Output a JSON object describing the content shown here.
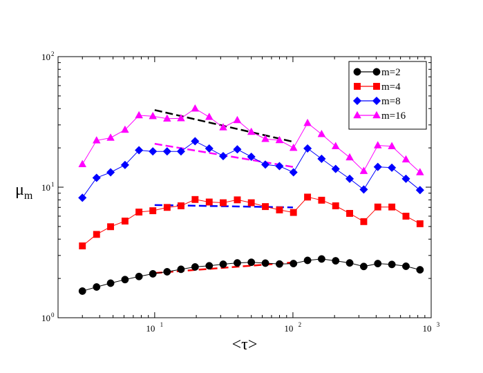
{
  "chart_data": {
    "type": "line",
    "xscale": "log",
    "yscale": "log",
    "xlim": [
      2,
      1000
    ],
    "ylim": [
      1,
      100
    ],
    "ylabel_base": "μ",
    "ylabel_sub": "m",
    "xlabel": "<τ>",
    "x_ticks": [
      {
        "value": 10,
        "base": "10",
        "exp": "1"
      },
      {
        "value": 100,
        "base": "10",
        "exp": "2"
      },
      {
        "value": 1000,
        "base": "10",
        "exp": "3"
      }
    ],
    "y_ticks": [
      {
        "value": 1,
        "base": "10",
        "exp": "0"
      },
      {
        "value": 10,
        "base": "10",
        "exp": "1"
      },
      {
        "value": 100,
        "base": "10",
        "exp": "2"
      }
    ],
    "legend_position": "top-right",
    "series": [
      {
        "name": "m=2",
        "color": "#000000",
        "marker": "circle",
        "x": [
          3.0,
          3.8,
          4.8,
          6.1,
          7.7,
          9.7,
          12.3,
          15.5,
          19.6,
          24.8,
          31.3,
          39.6,
          50.0,
          63.2,
          79.9,
          100.9,
          127.6,
          161.2,
          203.7,
          257.3,
          325.3,
          411.1,
          519.6,
          656.9,
          830.2
        ],
        "y": [
          1.6,
          1.72,
          1.84,
          1.96,
          2.07,
          2.17,
          2.25,
          2.35,
          2.45,
          2.5,
          2.57,
          2.63,
          2.66,
          2.62,
          2.58,
          2.6,
          2.75,
          2.82,
          2.73,
          2.63,
          2.47,
          2.6,
          2.56,
          2.48,
          2.33
        ]
      },
      {
        "name": "m=4",
        "color": "#ff0000",
        "marker": "square",
        "x": [
          3.0,
          3.8,
          4.8,
          6.1,
          7.7,
          9.7,
          12.3,
          15.5,
          19.6,
          24.8,
          31.3,
          39.6,
          50.0,
          63.2,
          79.9,
          100.9,
          127.6,
          161.2,
          203.7,
          257.3,
          325.3,
          411.1,
          519.6,
          656.9,
          830.2
        ],
        "y": [
          3.55,
          4.35,
          4.98,
          5.5,
          6.45,
          6.6,
          7.0,
          7.2,
          8.05,
          7.7,
          7.6,
          8.0,
          7.6,
          7.1,
          6.7,
          6.4,
          8.4,
          7.95,
          7.2,
          6.3,
          5.45,
          7.05,
          7.05,
          6.0,
          5.25
        ]
      },
      {
        "name": "m=8",
        "color": "#0000ff",
        "marker": "diamond",
        "x": [
          3.0,
          3.8,
          4.8,
          6.1,
          7.7,
          9.7,
          12.3,
          15.5,
          19.6,
          24.8,
          31.3,
          39.6,
          50.0,
          63.2,
          79.9,
          100.9,
          127.6,
          161.2,
          203.7,
          257.3,
          325.3,
          411.1,
          519.6,
          656.9,
          830.2
        ],
        "y": [
          8.3,
          11.8,
          13.0,
          14.8,
          19.2,
          18.8,
          18.8,
          18.8,
          22.5,
          19.8,
          17.3,
          19.5,
          17.1,
          14.9,
          14.5,
          13.0,
          19.8,
          16.5,
          13.8,
          11.6,
          9.6,
          14.3,
          14.1,
          11.6,
          9.5
        ]
      },
      {
        "name": "m=16",
        "color": "#ff00ff",
        "marker": "triangle",
        "x": [
          3.0,
          3.8,
          4.8,
          6.1,
          7.7,
          9.7,
          12.3,
          15.5,
          19.6,
          24.8,
          31.3,
          39.6,
          50.0,
          63.2,
          79.9,
          100.9,
          127.6,
          161.2,
          203.7,
          257.3,
          325.3,
          411.1,
          519.6,
          656.9,
          830.2
        ],
        "y": [
          15.0,
          22.8,
          23.9,
          27.5,
          35.5,
          35.0,
          33.5,
          33.7,
          40.0,
          34.5,
          28.7,
          32.6,
          26.5,
          23.4,
          22.9,
          20.0,
          31.0,
          25.5,
          20.6,
          16.9,
          13.3,
          20.9,
          20.6,
          16.3,
          13.0
        ]
      }
    ],
    "fit_lines": [
      {
        "name": "fit m=2",
        "color": "#ff0000",
        "x": [
          10,
          100
        ],
        "y": [
          2.2,
          2.65
        ]
      },
      {
        "name": "fit m=4",
        "color": "#0000ff",
        "x": [
          10,
          100
        ],
        "y": [
          7.3,
          7.0
        ]
      },
      {
        "name": "fit m=8",
        "color": "#ff00ff",
        "x": [
          10,
          100
        ],
        "y": [
          21.5,
          14.3
        ]
      },
      {
        "name": "fit m=16",
        "color": "#000000",
        "x": [
          10,
          100
        ],
        "y": [
          39.0,
          22.3
        ]
      }
    ]
  }
}
